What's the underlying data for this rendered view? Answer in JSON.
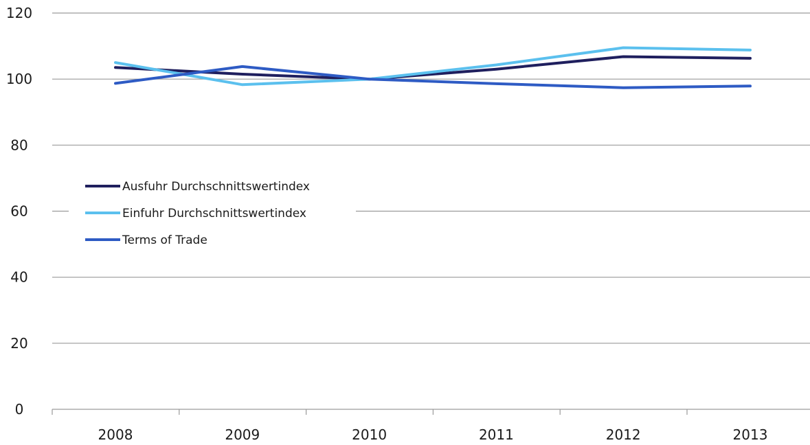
{
  "chart_data": {
    "type": "line",
    "title": "",
    "xlabel": "",
    "ylabel": "",
    "x": [
      "2008",
      "2009",
      "2010",
      "2011",
      "2012",
      "2013"
    ],
    "ylim": [
      0,
      120
    ],
    "yticks": [
      0,
      20,
      40,
      60,
      80,
      100,
      120
    ],
    "grid": true,
    "legend_position": "center-left",
    "series": [
      {
        "name": "Ausfuhr Durchschnittswertindex",
        "color": "#1f1f5e",
        "values": [
          103.5,
          101.5,
          100.0,
          103.0,
          106.8,
          106.3
        ]
      },
      {
        "name": "Einfuhr Durchschnittswertindex",
        "color": "#5bc0ee",
        "values": [
          105.0,
          98.3,
          100.0,
          104.3,
          109.5,
          108.8
        ]
      },
      {
        "name": "Terms of Trade",
        "color": "#2e5bc4",
        "values": [
          98.7,
          103.8,
          100.0,
          98.6,
          97.4,
          97.9
        ]
      }
    ]
  }
}
